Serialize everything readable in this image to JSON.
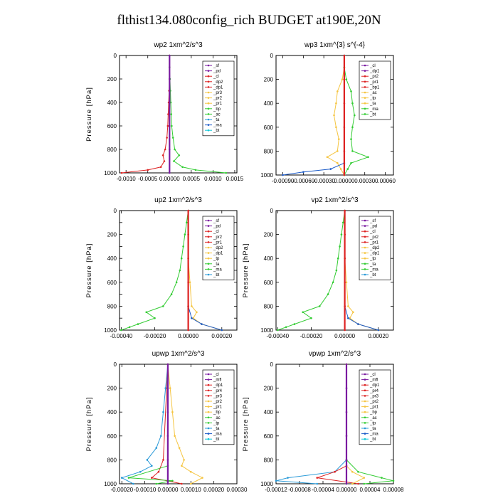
{
  "title": "flthist134.080config_rich  BUDGET at190E,20N",
  "chart_data": [
    {
      "type": "line",
      "title": "wp2   1xm^2/s^3",
      "ylabel": "Pressure [hPa]",
      "ylim": [
        1000,
        0
      ],
      "yticks": [
        0,
        200,
        400,
        600,
        800,
        1000
      ],
      "xlim": [
        -0.00115,
        0.00155
      ],
      "xticks": [
        "-0.0010",
        "-0.0005",
        "0.00000",
        "0.0005",
        "0.0010",
        "0.0015"
      ],
      "xtick_values": [
        -0.001,
        -0.0005,
        0,
        0.0005,
        0.001,
        0.0015
      ],
      "legend_entries": [
        "_sf",
        "_pd",
        "_cl",
        "_dp2",
        "_dp1",
        "_pr3",
        "_pr2",
        "_pr1",
        "_bp",
        "_ac",
        "_ta",
        "_ma",
        "_bt"
      ],
      "series": [
        {
          "name": "_cl",
          "color": "#dd2222",
          "y": [
            0,
            100,
            200,
            300,
            400,
            500,
            600,
            700,
            800,
            850,
            900,
            950,
            975,
            1000
          ],
          "values": [
            0,
            0,
            0,
            -1e-05,
            -2e-05,
            -3e-05,
            -4e-05,
            -6e-05,
            -0.0001,
            -0.00015,
            -0.00012,
            -0.0002,
            -0.0005,
            -0.0011
          ]
        },
        {
          "name": "_pr1",
          "color": "#33cc33",
          "y": [
            0,
            100,
            200,
            300,
            400,
            500,
            600,
            700,
            800,
            850,
            900,
            950,
            975,
            1000
          ],
          "values": [
            0,
            0,
            1e-05,
            2e-05,
            3e-05,
            4e-05,
            5e-05,
            8e-05,
            0.00012,
            0.00022,
            0.0001,
            0.0003,
            0.0006,
            0.0013
          ]
        },
        {
          "name": "_bt",
          "color": "#7a1aa0",
          "y": [
            0,
            200,
            400,
            600,
            800,
            1000
          ],
          "values": [
            0,
            0,
            0,
            0,
            0,
            0
          ]
        }
      ]
    },
    {
      "type": "line",
      "title": "wp3   1xm^{3} s^{-4}",
      "ylabel": "",
      "ylim": [
        1000,
        0
      ],
      "yticks": [
        0,
        200,
        400,
        600,
        800,
        1000
      ],
      "xlim": [
        -0.001,
        0.00072
      ],
      "xticks": [
        "-0.00090",
        "-0.00060",
        "-0.00030",
        "0.00000",
        "0.00030",
        "0.00060"
      ],
      "xtick_values": [
        -0.0009,
        -0.0006,
        -0.0003,
        0,
        0.0003,
        0.0006
      ],
      "legend_entries": [
        "_cl",
        "_dp1",
        "_pr2",
        "_pr1",
        "_bp1",
        "_ac",
        "_tp",
        "_ta",
        "_ma",
        "_bt"
      ],
      "series": [
        {
          "name": "_pr1",
          "color": "#f5c542",
          "y": [
            0,
            100,
            200,
            300,
            400,
            500,
            600,
            700,
            800,
            850,
            900,
            950,
            1000
          ],
          "values": [
            0,
            0,
            -3e-05,
            -0.0001,
            -0.00012,
            -0.00015,
            -0.00012,
            -8e-05,
            -0.0001,
            -0.00025,
            -0.0001,
            -5e-05,
            0
          ]
        },
        {
          "name": "_ac",
          "color": "#33cc33",
          "y": [
            0,
            100,
            200,
            300,
            400,
            500,
            600,
            700,
            800,
            850,
            900,
            950,
            1000
          ],
          "values": [
            0,
            0,
            3e-05,
            0.0001,
            0.00012,
            0.00015,
            0.00012,
            0.0001,
            0.00012,
            0.00035,
            0.0001,
            5e-05,
            0
          ]
        },
        {
          "name": "_tp",
          "color": "#1a5ac8",
          "y": [
            0,
            900,
            950,
            975,
            1000
          ],
          "values": [
            0,
            0,
            -0.0002,
            -0.0006,
            -0.0009
          ]
        },
        {
          "name": "_bt",
          "color": "#dd2222",
          "y": [
            0,
            200,
            400,
            600,
            800,
            1000
          ],
          "values": [
            0,
            0,
            0,
            0,
            0,
            0
          ]
        }
      ]
    },
    {
      "type": "line",
      "title": "up2   1xm^2/s^3",
      "ylabel": "Pressure [hPa]",
      "ylim": [
        1000,
        0
      ],
      "yticks": [
        0,
        100,
        200,
        300,
        400,
        500,
        600,
        700,
        800,
        900,
        1000
      ],
      "ytick_labels": [
        0,
        200,
        400,
        600,
        800,
        1000
      ],
      "xlim": [
        -0.00041,
        0.00029
      ],
      "xticks": [
        "-0.00040",
        "-0.00020",
        "0.00000",
        "0.00020"
      ],
      "xtick_values": [
        -0.0004,
        -0.0002,
        0,
        0.0002
      ],
      "legend_entries": [
        "_sf",
        "_pd",
        "_cl",
        "_pr2",
        "_pr1",
        "_dp2",
        "_dp1",
        "_tp",
        "_ta",
        "_ma",
        "_bt"
      ],
      "series": [
        {
          "name": "_dp1",
          "color": "#33cc33",
          "y": [
            0,
            100,
            200,
            300,
            400,
            500,
            600,
            700,
            800,
            850,
            900,
            950,
            975,
            1000
          ],
          "values": [
            0,
            -1e-05,
            -2e-05,
            -3e-05,
            -4e-05,
            -5e-05,
            -7e-05,
            -0.0001,
            -0.00015,
            -0.00025,
            -0.0002,
            -0.0003,
            -0.00035,
            -0.0004
          ]
        },
        {
          "name": "_pr2",
          "color": "#f5c542",
          "y": [
            0,
            400,
            600,
            800,
            850,
            900,
            950,
            1000
          ],
          "values": [
            0,
            0,
            1e-05,
            2e-05,
            5e-05,
            3e-05,
            8e-05,
            0.0002
          ]
        },
        {
          "name": "_ta",
          "color": "#1a5ac8",
          "y": [
            0,
            800,
            900,
            950,
            1000
          ],
          "values": [
            0,
            0,
            2e-05,
            8e-05,
            0.0002
          ]
        },
        {
          "name": "_bt",
          "color": "#dd2222",
          "y": [
            0,
            200,
            400,
            600,
            800,
            1000
          ],
          "values": [
            0,
            0,
            0,
            0,
            0,
            0
          ]
        }
      ]
    },
    {
      "type": "line",
      "title": "vp2   1xm^2/s^3",
      "ylabel": "Pressure [hPa]",
      "ylim": [
        1000,
        0
      ],
      "yticks": [
        0,
        200,
        400,
        600,
        800,
        1000
      ],
      "xlim": [
        -0.00041,
        0.00029
      ],
      "xticks": [
        "-0.00040",
        "-0.00020",
        "0.00000",
        "0.00020"
      ],
      "xtick_values": [
        -0.0004,
        -0.0002,
        0,
        0.0002
      ],
      "legend_entries": [
        "_sf",
        "_pd",
        "_cl",
        "_pr2",
        "_pr1",
        "_dp2",
        "_dp1",
        "_tp",
        "_ta",
        "_ma",
        "_bt"
      ],
      "series": [
        {
          "name": "_dp1",
          "color": "#33cc33",
          "y": [
            0,
            100,
            200,
            300,
            400,
            500,
            600,
            700,
            800,
            850,
            900,
            950,
            975,
            1000
          ],
          "values": [
            0,
            -1e-05,
            -2e-05,
            -3e-05,
            -4e-05,
            -5e-05,
            -7e-05,
            -0.0001,
            -0.00015,
            -0.00025,
            -0.0002,
            -0.0003,
            -0.00035,
            -0.0004
          ]
        },
        {
          "name": "_pr2",
          "color": "#f5c542",
          "y": [
            0,
            400,
            600,
            800,
            850,
            900,
            950,
            1000
          ],
          "values": [
            0,
            0,
            1e-05,
            2e-05,
            5e-05,
            3e-05,
            8e-05,
            0.0002
          ]
        },
        {
          "name": "_ta",
          "color": "#1a5ac8",
          "y": [
            0,
            800,
            900,
            950,
            1000
          ],
          "values": [
            0,
            0,
            2e-05,
            8e-05,
            0.0002
          ]
        },
        {
          "name": "_bt",
          "color": "#dd2222",
          "y": [
            0,
            200,
            400,
            600,
            800,
            1000
          ],
          "values": [
            0,
            0,
            0,
            0,
            0,
            0
          ]
        }
      ]
    },
    {
      "type": "line",
      "title": "upwp   1xm^2/s^3",
      "ylabel": "Pressure [hPa]",
      "ylim": [
        1000,
        0
      ],
      "yticks": [
        0,
        200,
        400,
        600,
        800,
        1000
      ],
      "xlim": [
        -0.00021,
        0.0003
      ],
      "xticks": [
        "-0.00020",
        "-0.00010",
        "0.00000",
        "0.00010",
        "0.00020",
        "0.00030"
      ],
      "xtick_values": [
        -0.0002,
        -0.0001,
        0,
        0.0001,
        0.0002,
        0.0003
      ],
      "legend_entries": [
        "_cl",
        "_mfl",
        "_dp1",
        "_pr4",
        "_pr3",
        "_pr2",
        "_pr1",
        "_bp",
        "_ac",
        "_tp",
        "_ta",
        "_ma",
        "_bt"
      ],
      "series": [
        {
          "name": "_tp",
          "color": "#2a9ad8",
          "y": [
            0,
            200,
            400,
            600,
            700,
            800,
            850,
            900,
            950,
            1000
          ],
          "values": [
            0,
            -1e-05,
            -2e-05,
            -3e-05,
            -5e-05,
            -9e-05,
            -7e-05,
            -0.00012,
            -0.0002,
            -0.00015
          ]
        },
        {
          "name": "_pr1",
          "color": "#f5c542",
          "y": [
            0,
            200,
            400,
            600,
            700,
            800,
            850,
            900,
            950,
            1000
          ],
          "values": [
            0,
            1e-05,
            2e-05,
            3e-05,
            5e-05,
            7e-05,
            6e-05,
            0.0001,
            0.00015,
            0.0001
          ]
        },
        {
          "name": "_dp1",
          "color": "#dd2222",
          "y": [
            0,
            800,
            900,
            950,
            1000
          ],
          "values": [
            0,
            -2e-05,
            -4e-05,
            -7e-05,
            6e-05
          ]
        },
        {
          "name": "_bp",
          "color": "#33cc33",
          "y": [
            0,
            850,
            950,
            975,
            1000
          ],
          "values": [
            0,
            0,
            -0.00017,
            2e-05,
            -5e-05
          ]
        },
        {
          "name": "_bt",
          "color": "#7a1aa0",
          "y": [
            0,
            200,
            400,
            600,
            800,
            1000
          ],
          "values": [
            0,
            0,
            0,
            0,
            0,
            0
          ]
        }
      ]
    },
    {
      "type": "line",
      "title": "vpwp   1xm^2/s^3",
      "ylabel": "Pressure [hPa]",
      "ylim": [
        1000,
        0
      ],
      "yticks": [
        0,
        200,
        400,
        600,
        800,
        1000
      ],
      "xlim": [
        -0.00012,
        8e-05
      ],
      "xticks": [
        "-0.00012",
        "-0.00008",
        "-0.00004",
        "0.00000",
        "0.00004",
        "0.00008"
      ],
      "xtick_values": [
        -0.00012,
        -8e-05,
        -4e-05,
        0,
        4e-05,
        8e-05
      ],
      "legend_entries": [
        "_cl",
        "_mfl",
        "_dp1",
        "_pr4",
        "_pr3",
        "_pr2",
        "_pr1",
        "_bp",
        "_ac",
        "_tp",
        "_ta",
        "_ma",
        "_bt"
      ],
      "series": [
        {
          "name": "_tp",
          "color": "#2a9ad8",
          "y": [
            0,
            800,
            900,
            950,
            975,
            1000
          ],
          "values": [
            0,
            0,
            -2e-05,
            -0.0001,
            -0.00012,
            -5e-05
          ]
        },
        {
          "name": "_bp",
          "color": "#33cc33",
          "y": [
            0,
            800,
            900,
            950,
            975,
            1000
          ],
          "values": [
            0,
            0,
            2e-05,
            6e-05,
            8e-05,
            3e-05
          ]
        },
        {
          "name": "_dp1",
          "color": "#dd2222",
          "y": [
            0,
            850,
            900,
            950,
            1000
          ],
          "values": [
            0,
            0,
            -2e-05,
            -5e-05,
            2e-05
          ]
        },
        {
          "name": "_pr1",
          "color": "#f5c542",
          "y": [
            0,
            850,
            900,
            950,
            1000
          ],
          "values": [
            0,
            0,
            1e-05,
            3e-05,
            1e-05
          ]
        },
        {
          "name": "_bt",
          "color": "#7a1aa0",
          "y": [
            0,
            200,
            400,
            600,
            800,
            1000
          ],
          "values": [
            0,
            0,
            0,
            0,
            0,
            0
          ]
        }
      ]
    }
  ]
}
